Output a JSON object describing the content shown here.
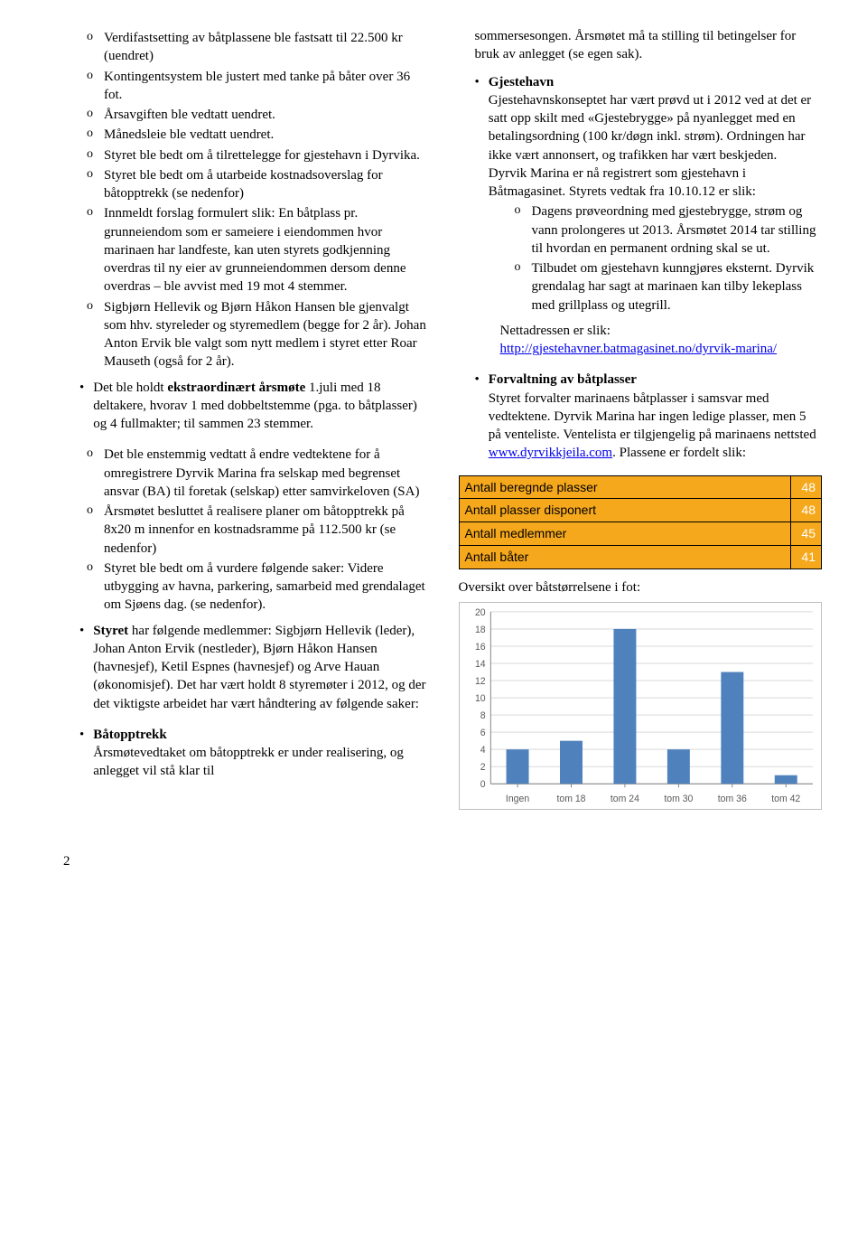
{
  "left": {
    "sublist1": [
      "Verdifastsetting av båtplassene ble fastsatt til 22.500 kr (uendret)",
      "Kontingentsystem ble justert med tanke på båter over 36 fot.",
      "Årsavgiften ble vedtatt uendret.",
      "Månedsleie ble vedtatt uendret.",
      "Styret ble bedt om å tilrettelegge for gjestehavn i Dyrvika.",
      "Styret ble bedt om å utarbeide kostnadsoverslag for båtopptrekk (se nedenfor)",
      "Innmeldt forslag formulert slik: En båtplass pr. grunneiendom som er sameiere i eiendommen hvor marinaen har landfeste, kan uten styrets godkjenning overdras til ny eier av grunneiendommen dersom denne overdras – ble avvist med 19 mot 4 stemmer.",
      "Sigbjørn Hellevik og Bjørn Håkon Hansen ble gjenvalgt som hhv. styreleder og styremedlem (begge for 2 år). Johan Anton Ervik ble valgt som nytt medlem i styret etter Roar Mauseth (også for 2 år)."
    ],
    "bullet2_pre": "Det ble holdt ",
    "bullet2_bold": "ekstraordinært årsmøte",
    "bullet2_post": " 1.juli med 18 deltakere, hvorav 1 med dobbeltstemme (pga. to båtplasser) og 4 fullmakter; til sammen 23 stemmer.",
    "sublist2": [
      "Det ble enstemmig vedtatt å endre vedtektene for å omregistrere Dyrvik Marina fra selskap med begrenset ansvar (BA)  til foretak (selskap) etter samvirkeloven (SA)",
      "Årsmøtet besluttet å realisere planer om båtopptrekk på 8x20 m innenfor en kostnadsramme på 112.500 kr (se nedenfor)",
      "Styret ble bedt om å vurdere følgende saker: Videre utbygging av havna, parkering, samarbeid med grendalaget om Sjøens dag. (se nedenfor)."
    ],
    "bullet3_bold": "Styret",
    "bullet3_rest": " har følgende medlemmer: Sigbjørn Hellevik (leder), Johan Anton Ervik (nestleder), Bjørn Håkon Hansen (havnesjef), Ketil Espnes (havnesjef) og Arve Hauan (økonomisjef). Det har vært holdt 8 styremøter i 2012, og der det viktigste arbeidet har vært håndtering av følgende saker:",
    "bullet4_bold": "Båtopptrekk",
    "bullet4_rest": "Årsmøtevedtaket om båtopptrekk er under realisering, og anlegget vil stå klar til"
  },
  "right": {
    "para1": "sommersesongen. Årsmøtet må ta stilling til betingelser for bruk av anlegget (se egen sak).",
    "gjestehavn_title": "Gjestehavn",
    "gjestehavn_body": "Gjestehavnskonseptet har vært prøvd ut i 2012 ved at det er satt opp skilt med «Gjestebrygge» på nyanlegget med en betalingsordning (100 kr/døgn inkl. strøm). Ordningen har ikke vært annonsert, og trafikken har vært beskjeden.\nDyrvik Marina  er nå registrert som gjestehavn i Båtmagasinet. Styrets vedtak fra 10.10.12 er slik:",
    "gjestehavn_sub": [
      "Dagens prøveordning med gjestebrygge, strøm og vann prolongeres ut 2013. Årsmøtet 2014 tar stilling til hvordan en permanent ordning skal se ut.",
      "Tilbudet om gjestehavn kunngjøres eksternt. Dyrvik grendalag har sagt at marinaen kan tilby lekeplass med grillplass og utegrill."
    ],
    "nettadr_label": "Nettadressen er slik:",
    "nettadr_link": "http://gjestehavner.batmagasinet.no/dyrvik-marina/",
    "forvaltning_title": "Forvaltning av båtplasser",
    "forvaltning_body_pre": "Styret forvalter marinaens båtplasser i samsvar med vedtektene. Dyrvik Marina har ingen ledige plasser, men 5 på venteliste. Ventelista er tilgjengelig på marinaens nettsted ",
    "forvaltning_link": "www.dyrvikkjeila.com",
    "forvaltning_body_post": ". Plassene er fordelt slik:",
    "table": {
      "rows": [
        {
          "label": "Antall beregnde plasser",
          "value": "48",
          "cls": "row-green row-yellow"
        },
        {
          "label": "Antall plasser disponert",
          "value": "48",
          "cls": "row-yellow row-redcell"
        },
        {
          "label": "Antall medlemmer",
          "value": "45",
          "cls": "row-yellow row-redcell"
        },
        {
          "label": "Antall båter",
          "value": "41",
          "cls": "row-yellow row-redcell"
        }
      ]
    },
    "chart_title": "Oversikt over båtstørrelsene i fot:",
    "chart": {
      "categories": [
        "Ingen",
        "tom 18",
        "tom 24",
        "tom 30",
        "tom 36",
        "tom 42"
      ],
      "values": [
        4,
        5,
        18,
        4,
        13,
        1
      ],
      "ylim": [
        0,
        20
      ],
      "ytick_step": 2,
      "bar_color": "#4f81bd",
      "grid_color": "#d9d9d9",
      "axis_color": "#808080",
      "label_color": "#595959",
      "label_fontsize": 11
    }
  },
  "pageno": "2"
}
